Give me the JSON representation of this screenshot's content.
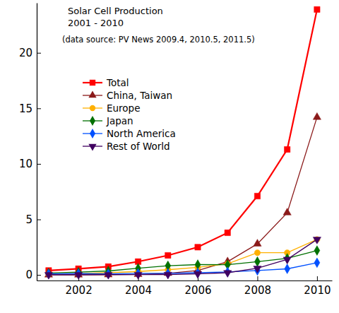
{
  "chart_data": {
    "type": "line",
    "title": "Solar Cell Production",
    "subtitle": "2001 - 2010",
    "annotation": "(data source: PV News 2009.4, 2010.5, 2011.5)",
    "x": [
      2001,
      2002,
      2003,
      2004,
      2005,
      2006,
      2007,
      2008,
      2009,
      2010
    ],
    "xlim": [
      2000.6,
      2010.5
    ],
    "xticks": [
      2002,
      2004,
      2006,
      2008,
      2010
    ],
    "ylim": [
      -0.5,
      24.5
    ],
    "yticks": [
      0,
      5,
      10,
      15,
      20
    ],
    "grid": false,
    "legend": "upper left",
    "series": [
      {
        "name": "Total",
        "color": "#ff0000",
        "marker": "square",
        "values": [
          0.4,
          0.56,
          0.75,
          1.2,
          1.76,
          2.5,
          3.8,
          7.1,
          11.3,
          23.9
        ]
      },
      {
        "name": "China, Taiwan",
        "color": "#8b1a1a",
        "marker": "triangle-up",
        "values": [
          0.01,
          0.01,
          0.02,
          0.05,
          0.15,
          0.4,
          1.2,
          2.8,
          5.6,
          14.2
        ]
      },
      {
        "name": "Europe",
        "color": "#ffb000",
        "marker": "circle",
        "values": [
          0.09,
          0.13,
          0.2,
          0.31,
          0.47,
          0.68,
          1.0,
          2.0,
          2.0,
          3.2
        ]
      },
      {
        "name": "Japan",
        "color": "#007000",
        "marker": "diamond",
        "values": [
          0.17,
          0.25,
          0.36,
          0.6,
          0.83,
          0.93,
          0.92,
          1.2,
          1.5,
          2.2
        ]
      },
      {
        "name": "North America",
        "color": "#0050ff",
        "marker": "diamond",
        "values": [
          0.1,
          0.12,
          0.1,
          0.14,
          0.15,
          0.2,
          0.27,
          0.4,
          0.55,
          1.1
        ]
      },
      {
        "name": "Rest of World",
        "color": "#400060",
        "marker": "triangle-down",
        "values": [
          0.02,
          0.02,
          0.03,
          0.03,
          0.04,
          0.1,
          0.2,
          0.6,
          1.4,
          3.2
        ]
      }
    ]
  }
}
